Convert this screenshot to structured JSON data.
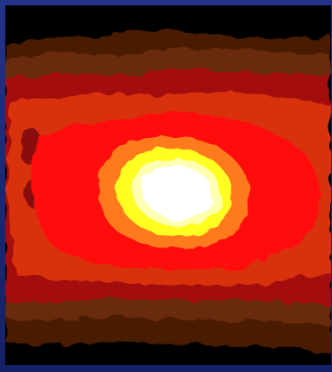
{
  "image": {
    "subject": "false-color-thermal-intensity-map",
    "colors": {
      "frame_border": "#1b2876",
      "background": "#000000",
      "level_1_dark_brown": "#4a1f05",
      "level_2_brown": "#6b2a08",
      "level_3_dark_red": "#a3100a",
      "level_4_orange_red": "#d8320a",
      "level_5_red": "#ff1010",
      "level_6_orange": "#ff7a1a",
      "level_7_yellow": "#ffff20",
      "level_8_pale_yellow": "#ffffb0",
      "core_white": "#ffffff"
    }
  }
}
